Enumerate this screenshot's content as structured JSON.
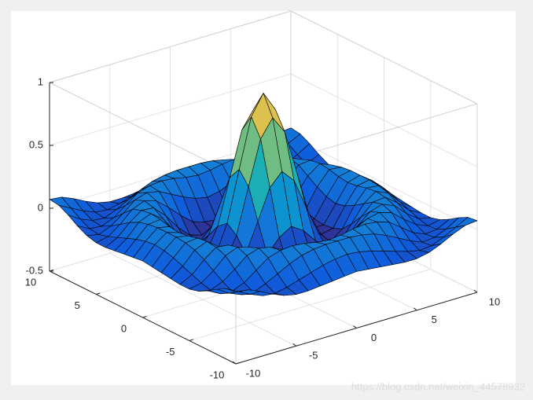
{
  "chart_data": {
    "type": "surface",
    "colormap": "parula",
    "edge_color": "#000000",
    "x": [
      -10,
      -9,
      -8,
      -7,
      -6,
      -5,
      -4,
      -3,
      -2,
      -1,
      0,
      1,
      2,
      3,
      4,
      5,
      6,
      7,
      8,
      9,
      10
    ],
    "y": [
      -10,
      -9,
      -8,
      -7,
      -6,
      -5,
      -4,
      -3,
      -2,
      -1,
      0,
      1,
      2,
      3,
      4,
      5,
      6,
      7,
      8,
      9,
      10
    ],
    "z": [
      [
        0.07,
        0.06,
        0.02,
        -0.03,
        -0.07,
        -0.09,
        -0.09,
        -0.08,
        -0.07,
        -0.06,
        -0.05,
        -0.06,
        -0.07,
        -0.08,
        -0.09,
        -0.09,
        -0.07,
        -0.03,
        0.02,
        0.06,
        0.07
      ],
      [
        0.06,
        0.01,
        -0.04,
        -0.08,
        -0.09,
        -0.07,
        -0.04,
        -0.01,
        0.02,
        0.04,
        0.05,
        0.04,
        0.02,
        -0.01,
        -0.04,
        -0.07,
        -0.09,
        -0.08,
        -0.04,
        0.01,
        0.06
      ],
      [
        0.02,
        -0.04,
        -0.08,
        -0.09,
        -0.05,
        0,
        0.05,
        0.09,
        0.11,
        0.12,
        0.12,
        0.12,
        0.11,
        0.09,
        0.05,
        0,
        -0.05,
        -0.09,
        -0.08,
        -0.04,
        0.02
      ],
      [
        -0.03,
        -0.08,
        -0.09,
        -0.05,
        0.02,
        0.09,
        0.12,
        0.13,
        0.12,
        0.1,
        0.09,
        0.1,
        0.12,
        0.13,
        0.12,
        0.09,
        0.02,
        -0.05,
        -0.09,
        -0.08,
        -0.03
      ],
      [
        -0.07,
        -0.09,
        -0.05,
        0.02,
        0.1,
        0.13,
        0.11,
        0.06,
        0.01,
        -0.03,
        -0.05,
        -0.03,
        0.01,
        0.06,
        0.11,
        0.13,
        0.1,
        0.02,
        -0.05,
        -0.09,
        -0.07
      ],
      [
        -0.09,
        -0.07,
        0,
        0.09,
        0.13,
        0.1,
        0.02,
        -0.07,
        -0.15,
        -0.18,
        -0.19,
        -0.18,
        -0.15,
        -0.07,
        0.02,
        0.1,
        0.13,
        0.09,
        0,
        -0.07,
        -0.09
      ],
      [
        -0.09,
        -0.04,
        0.05,
        0.12,
        0.11,
        0.02,
        -0.1,
        -0.19,
        -0.22,
        -0.2,
        -0.19,
        -0.2,
        -0.22,
        -0.19,
        -0.1,
        0.02,
        0.11,
        0.12,
        0.05,
        -0.04,
        -0.09
      ],
      [
        -0.08,
        -0.01,
        0.09,
        0.13,
        0.06,
        -0.07,
        -0.19,
        -0.21,
        -0.12,
        -0.01,
        0.05,
        -0.01,
        -0.12,
        -0.21,
        -0.19,
        -0.07,
        0.06,
        0.13,
        0.09,
        -0.01,
        -0.08
      ],
      [
        -0.07,
        0.02,
        0.11,
        0.12,
        0.01,
        -0.15,
        -0.22,
        -0.12,
        0.11,
        0.35,
        0.45,
        0.35,
        0.11,
        -0.12,
        -0.22,
        -0.15,
        0.01,
        0.12,
        0.11,
        0.02,
        -0.07
      ],
      [
        -0.06,
        0.04,
        0.12,
        0.1,
        -0.03,
        -0.18,
        -0.2,
        -0.01,
        0.35,
        0.7,
        0.84,
        0.7,
        0.35,
        -0.01,
        -0.2,
        -0.18,
        -0.03,
        0.1,
        0.12,
        0.04,
        -0.06
      ],
      [
        -0.05,
        0.05,
        0.12,
        0.09,
        -0.05,
        -0.19,
        -0.19,
        0.05,
        0.45,
        0.84,
        1,
        0.84,
        0.45,
        0.05,
        -0.19,
        -0.19,
        -0.05,
        0.09,
        0.12,
        0.05,
        -0.05
      ],
      [
        -0.06,
        0.04,
        0.12,
        0.1,
        -0.03,
        -0.18,
        -0.2,
        -0.01,
        0.35,
        0.7,
        0.84,
        0.7,
        0.35,
        -0.01,
        -0.2,
        -0.18,
        -0.03,
        0.1,
        0.12,
        0.04,
        -0.06
      ],
      [
        -0.07,
        0.02,
        0.11,
        0.12,
        0.01,
        -0.15,
        -0.22,
        -0.12,
        0.11,
        0.35,
        0.45,
        0.35,
        0.11,
        -0.12,
        -0.22,
        -0.15,
        0.01,
        0.12,
        0.11,
        0.02,
        -0.07
      ],
      [
        -0.08,
        -0.01,
        0.09,
        0.13,
        0.06,
        -0.07,
        -0.19,
        -0.21,
        -0.12,
        -0.01,
        0.05,
        -0.01,
        -0.12,
        -0.21,
        -0.19,
        -0.07,
        0.06,
        0.13,
        0.09,
        -0.01,
        -0.08
      ],
      [
        -0.09,
        -0.04,
        0.05,
        0.12,
        0.11,
        0.02,
        -0.1,
        -0.19,
        -0.22,
        -0.2,
        -0.19,
        -0.2,
        -0.22,
        -0.19,
        -0.1,
        0.02,
        0.11,
        0.12,
        0.05,
        -0.04,
        -0.09
      ],
      [
        -0.09,
        -0.07,
        0,
        0.09,
        0.13,
        0.1,
        0.02,
        -0.07,
        -0.15,
        -0.18,
        -0.19,
        -0.18,
        -0.15,
        -0.07,
        0.02,
        0.1,
        0.13,
        0.09,
        0,
        -0.07,
        -0.09
      ],
      [
        -0.07,
        -0.09,
        -0.05,
        0.02,
        0.1,
        0.13,
        0.11,
        0.06,
        0.01,
        -0.03,
        -0.05,
        -0.03,
        0.01,
        0.06,
        0.11,
        0.13,
        0.1,
        0.02,
        -0.05,
        -0.09,
        -0.07
      ],
      [
        -0.03,
        -0.08,
        -0.09,
        -0.05,
        0.02,
        0.09,
        0.12,
        0.13,
        0.12,
        0.1,
        0.09,
        0.1,
        0.12,
        0.13,
        0.12,
        0.09,
        0.02,
        -0.05,
        -0.09,
        -0.08,
        -0.03
      ],
      [
        0.02,
        -0.04,
        -0.08,
        -0.09,
        -0.05,
        0,
        0.05,
        0.09,
        0.11,
        0.12,
        0.12,
        0.12,
        0.11,
        0.09,
        0.05,
        0,
        -0.05,
        -0.09,
        -0.08,
        -0.04,
        0.02
      ],
      [
        0.06,
        0.01,
        -0.04,
        -0.08,
        -0.09,
        -0.07,
        -0.04,
        -0.01,
        0.02,
        0.04,
        0.05,
        0.04,
        0.02,
        -0.01,
        -0.04,
        -0.07,
        -0.09,
        -0.08,
        -0.04,
        0.01,
        0.06
      ],
      [
        0.07,
        0.06,
        0.02,
        -0.03,
        -0.07,
        -0.09,
        -0.09,
        -0.08,
        -0.07,
        -0.06,
        -0.05,
        -0.06,
        -0.07,
        -0.08,
        -0.09,
        -0.09,
        -0.07,
        -0.03,
        0.02,
        0.06,
        0.07
      ]
    ],
    "xlim": [
      -10,
      10
    ],
    "ylim": [
      -10,
      10
    ],
    "zlim": [
      -0.5,
      1
    ],
    "xticks": [
      -10,
      -5,
      0,
      5,
      10
    ],
    "yticks": [
      -10,
      -5,
      0,
      5,
      10
    ],
    "zticks": [
      -0.5,
      0,
      0.5,
      1
    ],
    "grid": true,
    "watermark": "https://blog.csdn.net/weixin_44578932"
  }
}
